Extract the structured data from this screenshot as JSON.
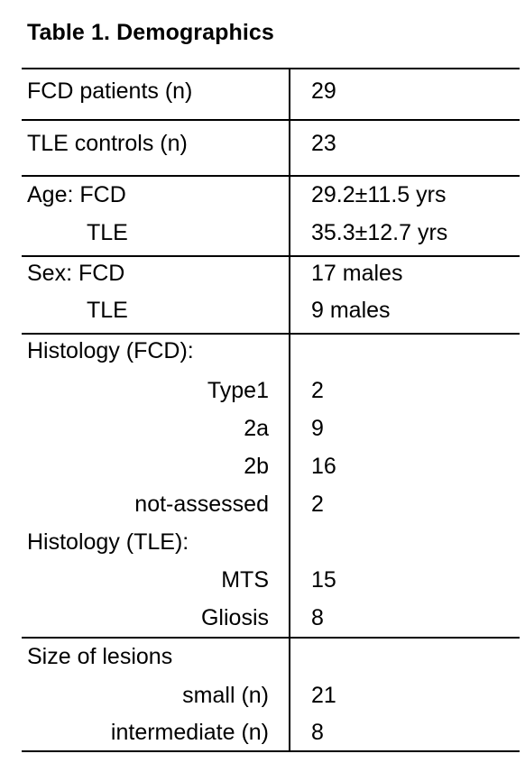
{
  "table": {
    "title": "Table 1. Demographics",
    "rows": {
      "fcd_patients": {
        "label": "FCD patients (n)",
        "value": "29"
      },
      "tle_controls": {
        "label": "TLE controls (n)",
        "value": "23"
      },
      "age_fcd": {
        "label": "Age: FCD",
        "value": "29.2±11.5 yrs"
      },
      "age_tle": {
        "label": "TLE",
        "value": "35.3±12.7 yrs"
      },
      "sex_fcd": {
        "label": "Sex: FCD",
        "value": "17 males"
      },
      "sex_tle": {
        "label": "TLE",
        "value": "9 males"
      },
      "histology_fcd": {
        "label": "Histology (FCD):",
        "value": ""
      },
      "type1": {
        "label": "Type1",
        "value": "2"
      },
      "type2a": {
        "label": "2a",
        "value": "9"
      },
      "type2b": {
        "label": "2b",
        "value": "16"
      },
      "not_assessed": {
        "label": "not-assessed",
        "value": "2"
      },
      "histology_tle": {
        "label": "Histology (TLE):",
        "value": ""
      },
      "mts": {
        "label": "MTS",
        "value": "15"
      },
      "gliosis": {
        "label": "Gliosis",
        "value": "8"
      },
      "size_lesions": {
        "label": "Size of lesions",
        "value": ""
      },
      "small": {
        "label": "small (n)",
        "value": "21"
      },
      "intermediate": {
        "label": "intermediate (n)",
        "value": "8"
      }
    }
  }
}
